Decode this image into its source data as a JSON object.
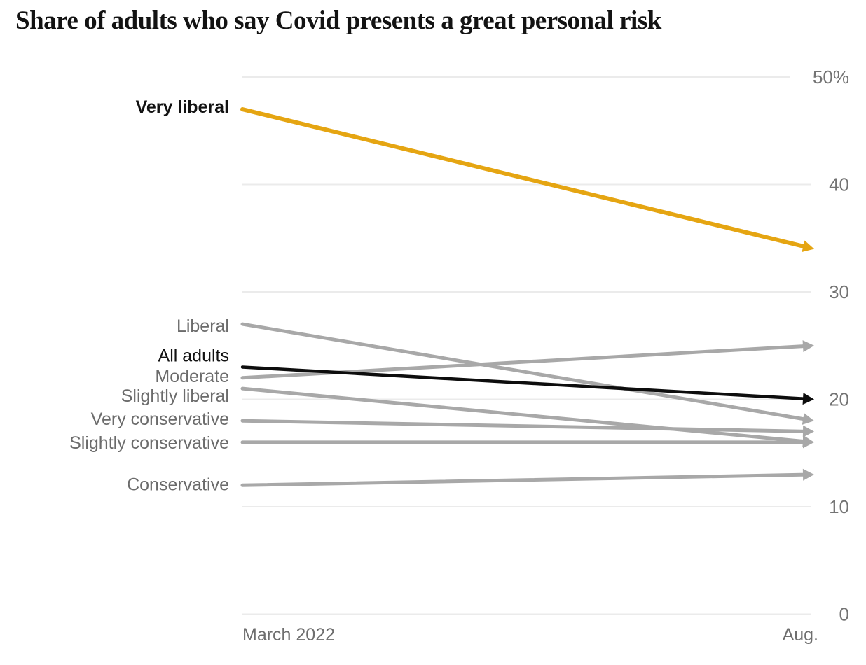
{
  "header": {
    "title": "Share of adults who say Covid presents a great personal risk"
  },
  "chart_data": {
    "type": "line",
    "subtype": "slope-chart-with-arrows",
    "x_labels": {
      "start": "March 2022",
      "end": "Aug."
    },
    "y_axis": {
      "side": "right",
      "ticks": [
        {
          "value": 50,
          "label": "50%"
        },
        {
          "value": 40,
          "label": "40"
        },
        {
          "value": 30,
          "label": "30"
        },
        {
          "value": 20,
          "label": "20"
        },
        {
          "value": 10,
          "label": "10"
        },
        {
          "value": 0,
          "label": "0"
        }
      ],
      "ylim": [
        0,
        50
      ],
      "grid": true
    },
    "series": [
      {
        "name": "Very liberal",
        "values": [
          47,
          34
        ],
        "color": "#e5a512",
        "stroke_width": 6,
        "label_color": "#121212",
        "label_bold": true,
        "label_dy": -4
      },
      {
        "name": "Liberal",
        "values": [
          27,
          18
        ],
        "color": "#a8a8a8",
        "stroke_width": 5,
        "label_color": "#6b6b6b",
        "label_bold": false,
        "label_dy": 2
      },
      {
        "name": "All adults",
        "values": [
          23,
          20
        ],
        "color": "#0d0d0d",
        "stroke_width": 4.5,
        "label_color": "#121212",
        "label_bold": false,
        "label_dy": -17
      },
      {
        "name": "Moderate",
        "values": [
          22,
          25
        ],
        "color": "#a8a8a8",
        "stroke_width": 5,
        "label_color": "#6b6b6b",
        "label_bold": false,
        "label_dy": -3
      },
      {
        "name": "Slightly liberal",
        "values": [
          21,
          16
        ],
        "color": "#a8a8a8",
        "stroke_width": 5,
        "label_color": "#6b6b6b",
        "label_bold": false,
        "label_dy": 10
      },
      {
        "name": "Very conservative",
        "values": [
          18,
          17
        ],
        "color": "#a8a8a8",
        "stroke_width": 5,
        "label_color": "#6b6b6b",
        "label_bold": false,
        "label_dy": -3
      },
      {
        "name": "Slightly conservative",
        "values": [
          16,
          16
        ],
        "color": "#a8a8a8",
        "stroke_width": 5,
        "label_color": "#6b6b6b",
        "label_bold": false,
        "label_dy": 0
      },
      {
        "name": "Conservative",
        "values": [
          12,
          13
        ],
        "color": "#a8a8a8",
        "stroke_width": 5,
        "label_color": "#6b6b6b",
        "label_bold": false,
        "label_dy": -2
      }
    ],
    "colors": {
      "accent_orange": "#e5a512",
      "line_gray": "#a8a8a8",
      "line_black": "#0d0d0d",
      "gridline": "#ebebeb",
      "tick_label": "#737373",
      "axis_label": "#6e6e6e",
      "series_label_gray": "#6b6b6b",
      "series_label_black": "#121212"
    },
    "legend": "inline-left-labels"
  }
}
